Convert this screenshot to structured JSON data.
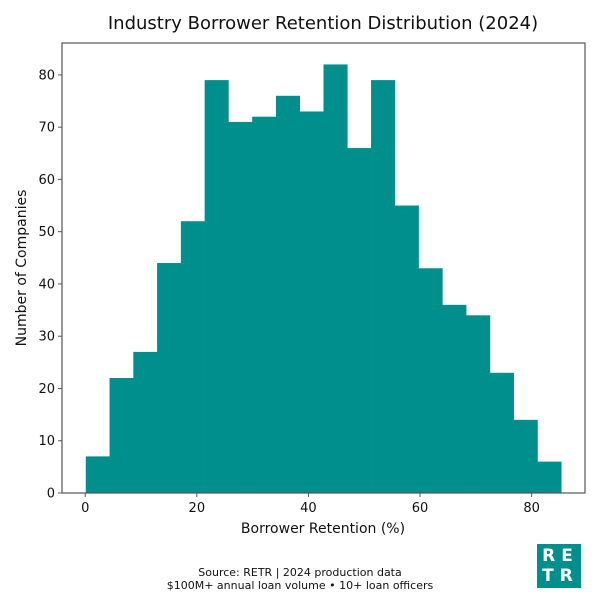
{
  "chart_data": {
    "type": "bar",
    "subtype": "histogram",
    "title": "Industry Borrower Retention Distribution (2024)",
    "xlabel": "Borrower Retention (%)",
    "ylabel": "Number of Companies",
    "bin_edges": [
      0.1,
      4.36,
      8.62,
      12.88,
      17.14,
      21.4,
      25.66,
      29.92,
      34.18,
      38.44,
      42.7,
      46.96,
      51.22,
      55.48,
      59.74,
      64.0,
      68.26,
      72.52,
      76.78,
      81.04,
      85.3
    ],
    "values": [
      7,
      22,
      27,
      44,
      52,
      79,
      71,
      72,
      76,
      73,
      82,
      66,
      79,
      55,
      43,
      36,
      34,
      23,
      14,
      6
    ],
    "xlim": [
      -4.16,
      89.56
    ],
    "ylim": [
      0,
      86.1
    ],
    "xticks": [
      0,
      20,
      40,
      60,
      80
    ],
    "yticks": [
      0,
      10,
      20,
      30,
      40,
      50,
      60,
      70,
      80
    ],
    "bar_color": "#008f8c",
    "grid": false,
    "legend": null
  },
  "footer": {
    "line1": "Source: RETR | 2024 production data",
    "line2": "$100M+ annual loan volume • 10+ loan officers"
  },
  "logo": {
    "line1": "RE",
    "line2": "TR",
    "background": "#008f8c"
  }
}
